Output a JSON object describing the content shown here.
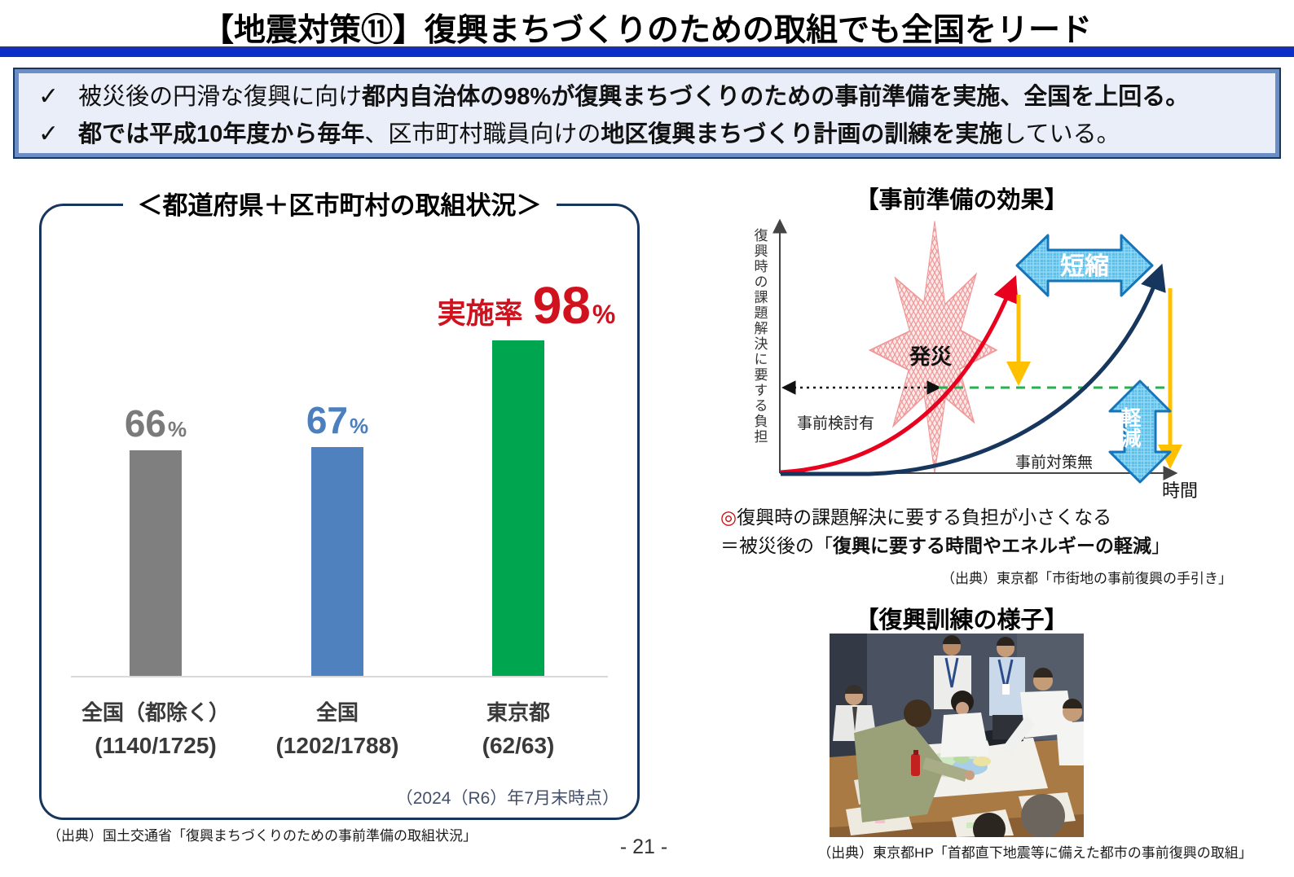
{
  "page": {
    "title": "【地震対策⑪】復興まちづくりのための取組でも全国をリード",
    "page_number": "- 21 -"
  },
  "summary": {
    "check_icon": "✓",
    "bullet1": {
      "normal1": "被災後の円滑な復興に向け",
      "bold1": "都内自治体の98%が復興まちづくりのための事前準備を実施、全国を上回る。"
    },
    "bullet2": {
      "bold1": "都では平成10年度から毎年",
      "normal1": "、区市町村職員向けの",
      "bold2": "地区復興まちづくり計画の訓練を実施",
      "normal2": "している。"
    }
  },
  "chart": {
    "panel_title": "＜都道府県＋区市町村の取組状況＞",
    "highlight_prefix": "実施率",
    "note": "（2024（R6）年7月末時点）",
    "source": "（出典）国土交通省「復興まちづくりのための事前準備の取組状況」",
    "bars": [
      {
        "label": "全国（都除く）",
        "sub": "(1140/1725)",
        "value_label": "66",
        "unit": "%",
        "color": "#7f7f7f",
        "label_color": "#7a7a7a"
      },
      {
        "label": "全国",
        "sub": "(1202/1788)",
        "value_label": "67",
        "unit": "%",
        "color": "#4e81bd",
        "label_color": "#4b7fbd"
      },
      {
        "label": "東京都",
        "sub": "(62/63)",
        "value_label": "98",
        "unit": "%",
        "color": "#00a64f",
        "label_color": "#d0121f"
      }
    ]
  },
  "chart_data": {
    "type": "bar",
    "title": "＜都道府県＋区市町村の取組状況＞",
    "categories": [
      "全国（都除く） (1140/1725)",
      "全国 (1202/1788)",
      "東京都 (62/63)"
    ],
    "values": [
      66,
      67,
      98
    ],
    "unit": "%",
    "ylim": [
      0,
      100
    ],
    "annotations": [
      "66%",
      "67%",
      "実施率 98%"
    ],
    "colors": [
      "#7f7f7f",
      "#4e81bd",
      "#00a64f"
    ],
    "note": "（2024（R6）年7月末時点）",
    "legend_position": "none",
    "grid": false
  },
  "effect_diagram": {
    "title": "【事前準備の効果】",
    "y_axis_label": "復興時の課題解決に要する負担",
    "x_axis_label": "時間",
    "burst_label": "発災",
    "curve_with_label": "事前検討有",
    "curve_without_label": "事前対策無",
    "shorten_label": "短縮",
    "reduce_label": "軽減",
    "conclusion_mark": "◎",
    "conclusion1": "復興時の課題解決に要する負担が小さくなる",
    "conclusion2_pre": "＝被災後の「",
    "conclusion2_bold": "復興に要する時間やエネルギーの軽減",
    "conclusion2_post": "」",
    "source": "（出典）東京都「市街地の事前復興の手引き」",
    "colors": {
      "curve_with": "#e8001e",
      "curve_without": "#17365d",
      "shorten_reduce_arrow": "#55c3ef",
      "drop_arrow": "#ffc000",
      "level_line": "#27b050"
    }
  },
  "training": {
    "title": "【復興訓練の様子】",
    "source": "（出典）東京都HP「首都直下地震等に備えた都市の事前復興の取組」",
    "photo_alt": "区市町村職員が机上の地図を囲んで検討する復興訓練の写真"
  }
}
